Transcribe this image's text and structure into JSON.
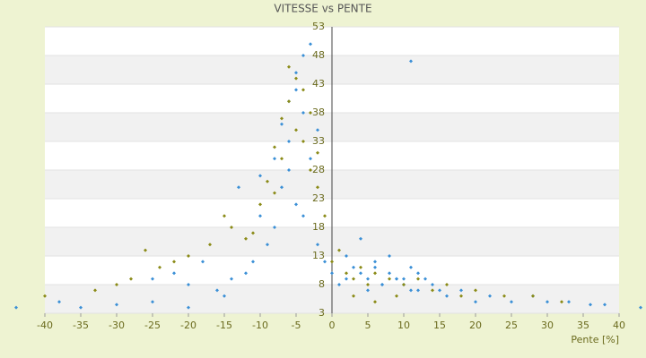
{
  "chart_data": {
    "type": "scatter",
    "title": "VITESSE vs PENTE",
    "x_label": "Pente [%]",
    "xlim": [
      -40,
      40
    ],
    "xticks": [
      -40,
      -35,
      -30,
      -25,
      -20,
      -15,
      -10,
      -5,
      0,
      5,
      10,
      15,
      20,
      25,
      30,
      35,
      40
    ],
    "ylim": [
      3,
      53
    ],
    "yticks": [
      3,
      8,
      13,
      18,
      23,
      28,
      33,
      38,
      43,
      48,
      53
    ],
    "grid": true,
    "banded_rows": true,
    "series": [
      {
        "color": "#3a8fd6",
        "x": [
          -44,
          -38,
          -35,
          -30,
          -25,
          -20,
          -15,
          -12,
          -10,
          -8,
          -6,
          -5,
          -4,
          -3,
          -2,
          -6,
          -5,
          -7,
          -4,
          -9,
          -6,
          -5,
          -3,
          -8,
          -11,
          -14,
          -16,
          -13,
          -10,
          -7,
          -4,
          -2,
          -1,
          0,
          1,
          2,
          3,
          4,
          5,
          6,
          7,
          8,
          9,
          10,
          11,
          12,
          13,
          14,
          15,
          16,
          18,
          20,
          22,
          25,
          28,
          30,
          33,
          36,
          38,
          43,
          2,
          4,
          6,
          8,
          10,
          12,
          5,
          7,
          9,
          11,
          -20,
          -25,
          -18,
          -22,
          11
        ],
        "values": [
          4,
          5,
          4,
          4.5,
          5,
          4,
          6,
          10,
          20,
          30,
          40,
          45,
          48,
          50,
          35,
          28,
          42,
          25,
          38,
          15,
          33,
          22,
          30,
          18,
          12,
          9,
          7,
          25,
          27,
          36,
          20,
          15,
          12,
          10,
          8,
          9,
          11,
          10,
          9,
          12,
          8,
          10,
          9,
          8,
          11,
          7,
          9,
          8,
          7,
          6,
          7,
          5,
          6,
          5,
          6,
          5,
          5,
          4.5,
          4.5,
          4,
          13,
          16,
          11,
          13,
          9,
          10,
          7,
          8,
          9,
          7,
          8,
          9,
          12,
          10,
          47
        ]
      },
      {
        "color": "#8a8a16",
        "x": [
          -40,
          -33,
          -28,
          -24,
          -20,
          -17,
          -14,
          -12,
          -10,
          -9,
          -8,
          -7,
          -6,
          -5,
          -4,
          -3,
          -2,
          -1,
          -7,
          -5,
          -3,
          -6,
          -4,
          -8,
          -2,
          0,
          1,
          2,
          3,
          4,
          5,
          6,
          8,
          10,
          12,
          14,
          16,
          18,
          20,
          24,
          28,
          32,
          -26,
          -22,
          -30,
          -15,
          -11,
          3,
          6,
          9
        ],
        "values": [
          6,
          7,
          9,
          11,
          13,
          15,
          18,
          16,
          22,
          26,
          32,
          37,
          40,
          35,
          33,
          28,
          25,
          20,
          30,
          44,
          38,
          46,
          42,
          24,
          31,
          12,
          14,
          10,
          9,
          11,
          8,
          10,
          9,
          8,
          9,
          7,
          8,
          6,
          7,
          6,
          6,
          5,
          14,
          12,
          8,
          20,
          17,
          6,
          5,
          6
        ]
      }
    ]
  }
}
